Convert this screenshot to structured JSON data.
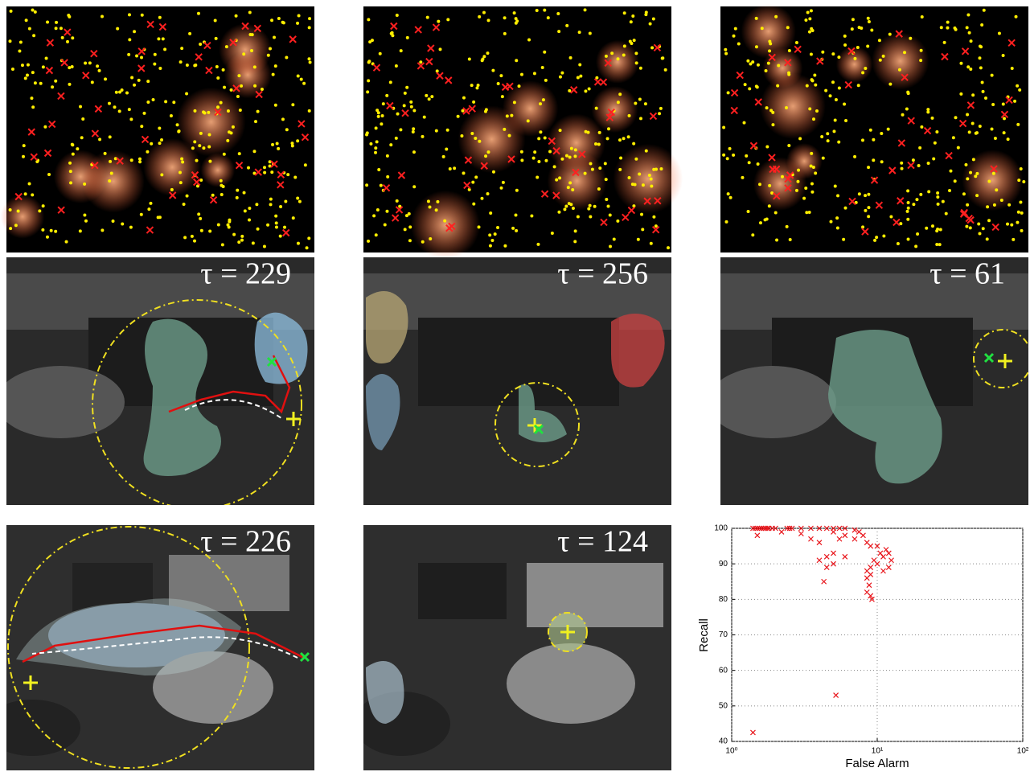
{
  "frames": [
    {
      "label": "τ = 229"
    },
    {
      "label": "τ = 256"
    },
    {
      "label": "τ = 61"
    },
    {
      "label": "τ = 226"
    },
    {
      "label": "τ = 124"
    }
  ],
  "chart_data": {
    "type": "scatter",
    "xlabel": "False Alarm",
    "ylabel": "Recall",
    "color": "#e8141a",
    "log_x": true,
    "grid": true,
    "xlim": [
      1,
      100
    ],
    "ylim": [
      40,
      100
    ],
    "xticks": [
      {
        "value": 1,
        "label": "10⁰"
      },
      {
        "value": 10,
        "label": "10¹"
      },
      {
        "value": 100,
        "label": "10²"
      }
    ],
    "yticks": [
      40,
      50,
      60,
      70,
      80,
      90,
      100
    ],
    "x": [
      1.4,
      1.45,
      1.5,
      1.55,
      1.6,
      1.65,
      1.7,
      1.75,
      1.8,
      1.9,
      2.0,
      2.4,
      2.5,
      2.6,
      3.0,
      3.5,
      4.0,
      4.5,
      5.0,
      5.5,
      6.0,
      1.5,
      2.2,
      5,
      6,
      7,
      7.5,
      8,
      8.5,
      9,
      10,
      10.5,
      11,
      9.5,
      9,
      8.5,
      9,
      8.5,
      8.8,
      8.5,
      9,
      9.2,
      10,
      11,
      12,
      12.5,
      12,
      11.5,
      6,
      5,
      4.5,
      4,
      5,
      4.5,
      4.3,
      5.5,
      4,
      3.5,
      5.2,
      1.4,
      7,
      3
    ],
    "values": [
      100,
      100,
      100,
      100,
      100,
      100,
      100,
      100,
      100,
      100,
      100,
      100,
      100,
      100,
      100,
      100,
      100,
      100,
      100,
      100,
      100,
      98,
      99,
      99,
      98,
      97,
      99,
      98,
      96,
      95,
      95,
      93,
      92,
      91,
      89,
      88,
      87,
      86,
      84,
      82,
      81,
      80,
      90,
      88,
      89,
      91,
      93,
      94,
      92,
      93,
      92,
      91,
      90,
      89,
      85,
      97,
      96,
      97,
      53,
      42.5,
      99.5,
      98.5
    ]
  }
}
